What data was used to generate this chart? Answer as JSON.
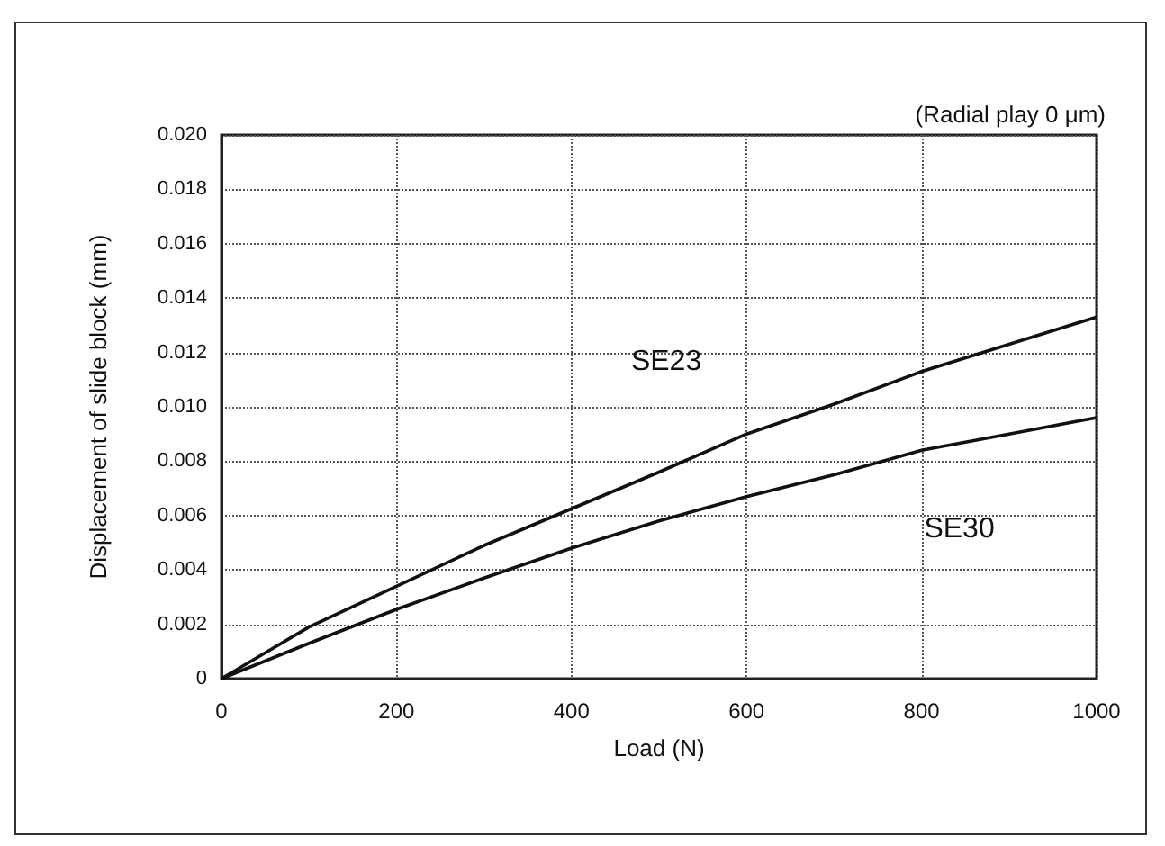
{
  "chart_data": {
    "type": "line",
    "xlabel": "Load (N)",
    "ylabel": "Displacement of slide block (mm)",
    "annotations": [
      "(Radial play 0 μm)"
    ],
    "x": [
      0,
      100,
      200,
      300,
      400,
      500,
      600,
      700,
      800,
      900,
      1000
    ],
    "series": [
      {
        "name": "SE23",
        "color": "#111111",
        "values": [
          0,
          0.0019,
          0.0034,
          0.0049,
          0.00625,
          0.0076,
          0.009,
          0.0101,
          0.0113,
          0.0123,
          0.0133
        ]
      },
      {
        "name": "SE30",
        "color": "#111111",
        "values": [
          0,
          0.0013,
          0.00255,
          0.0037,
          0.0048,
          0.0058,
          0.0067,
          0.0075,
          0.0084,
          0.009,
          0.0096
        ]
      }
    ],
    "xlim": [
      0,
      1000
    ],
    "xticks": [
      0,
      200,
      400,
      600,
      800,
      1000
    ],
    "ylim": [
      0,
      0.02
    ],
    "yticks": [
      {
        "value": 0,
        "label": "0"
      },
      {
        "value": 0.002,
        "label": "0.002"
      },
      {
        "value": 0.004,
        "label": "0.004"
      },
      {
        "value": 0.006,
        "label": "0.006"
      },
      {
        "value": 0.008,
        "label": "0.008"
      },
      {
        "value": 0.01,
        "label": "0.010"
      },
      {
        "value": 0.012,
        "label": "0.012"
      },
      {
        "value": 0.014,
        "label": "0.014"
      },
      {
        "value": 0.016,
        "label": "0.016"
      },
      {
        "value": 0.018,
        "label": "0.018"
      },
      {
        "value": 0.02,
        "label": "0.020"
      }
    ],
    "grid": true,
    "legend": false,
    "marker": "none",
    "line_style": "solid"
  }
}
